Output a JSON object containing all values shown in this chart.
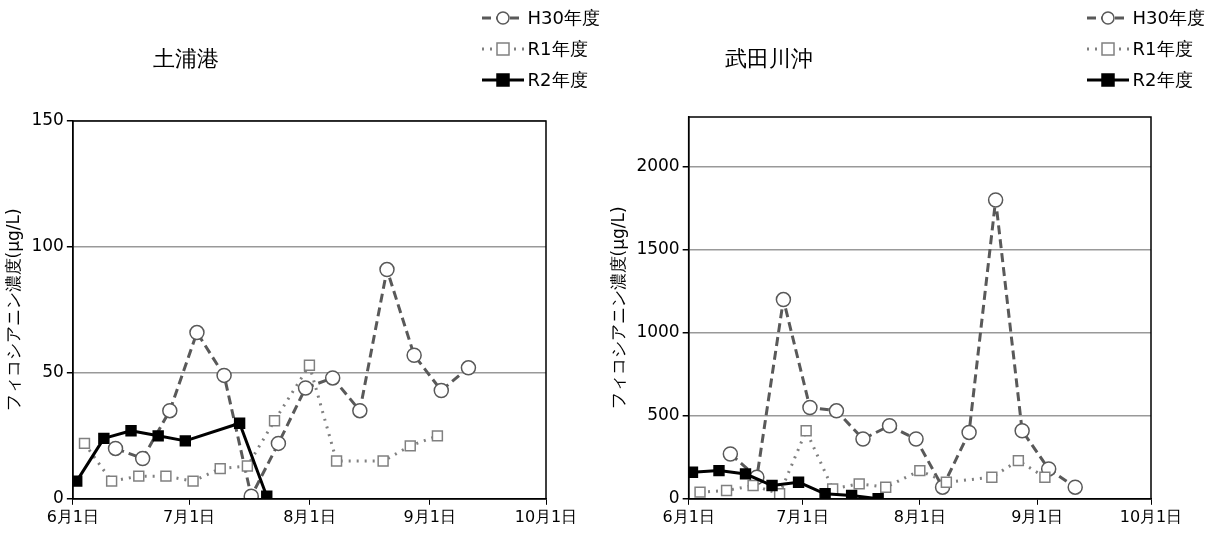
{
  "chart_data": [
    {
      "type": "line",
      "title": "土浦港",
      "ylabel": "フィコシアニン濃度(μg/L)",
      "legend": "top right",
      "grid": "y",
      "xlim": [
        "--06-01",
        "--10-01"
      ],
      "xticks": [
        {
          "value": "--06-01",
          "label": "6月1日"
        },
        {
          "value": "--07-01",
          "label": "7月1日"
        },
        {
          "value": "--08-01",
          "label": "8月1日"
        },
        {
          "value": "--09-01",
          "label": "9月1日"
        },
        {
          "value": "--10-01",
          "label": "10月1日"
        }
      ],
      "ylim": [
        0,
        150
      ],
      "yticks": [
        0,
        50,
        100,
        150
      ],
      "series": [
        {
          "name": "H30年度",
          "color": "#595959",
          "marker": "circle",
          "line_style": "dashed",
          "x": [
            "--06-12",
            "--06-19",
            "--06-26",
            "--07-03",
            "--07-10",
            "--07-17",
            "--07-24",
            "--07-31",
            "--08-07",
            "--08-14",
            "--08-21",
            "--08-28",
            "--09-04",
            "--09-11"
          ],
          "values": [
            20,
            16,
            35,
            66,
            49,
            1,
            22,
            44,
            48,
            35,
            91,
            57,
            43,
            52
          ]
        },
        {
          "name": "R1年度",
          "color": "#808080",
          "marker": "square",
          "line_style": "dotted",
          "x": [
            "--06-04",
            "--06-11",
            "--06-18",
            "--06-25",
            "--07-02",
            "--07-09",
            "--07-16",
            "--07-23",
            "--08-01",
            "--08-08",
            "--08-20",
            "--08-27",
            "--09-03"
          ],
          "values": [
            22,
            7,
            9,
            9,
            7,
            12,
            13,
            31,
            53,
            15,
            15,
            21,
            25
          ]
        },
        {
          "name": "R2年度",
          "color": "#000000",
          "marker": "square",
          "line_style": "solid",
          "x": [
            "--06-02",
            "--06-09",
            "--06-16",
            "--06-23",
            "--06-30",
            "--07-14",
            "--07-21"
          ],
          "values": [
            7,
            24,
            27,
            25,
            23,
            30,
            1
          ]
        }
      ]
    },
    {
      "type": "line",
      "title": "武田川沖",
      "ylabel": "フィコシアニン濃度(μg/L)",
      "legend": "top right",
      "grid": "y",
      "xlim": [
        "--06-01",
        "--10-01"
      ],
      "xticks": [
        {
          "value": "--06-01",
          "label": "6月1日"
        },
        {
          "value": "--07-01",
          "label": "7月1日"
        },
        {
          "value": "--08-01",
          "label": "8月1日"
        },
        {
          "value": "--09-01",
          "label": "9月1日"
        },
        {
          "value": "--10-01",
          "label": "10月1日"
        }
      ],
      "ylim": [
        0,
        2300
      ],
      "yticks": [
        0,
        500,
        1000,
        1500,
        2000
      ],
      "series": [
        {
          "name": "H30年度",
          "color": "#595959",
          "marker": "circle",
          "line_style": "dashed",
          "x": [
            "--06-12",
            "--06-19",
            "--06-26",
            "--07-03",
            "--07-10",
            "--07-17",
            "--07-24",
            "--07-31",
            "--08-07",
            "--08-14",
            "--08-21",
            "--08-28",
            "--09-04",
            "--09-11"
          ],
          "values": [
            270,
            130,
            1200,
            550,
            530,
            360,
            440,
            360,
            70,
            400,
            1800,
            410,
            180,
            70
          ]
        },
        {
          "name": "R1年度",
          "color": "#808080",
          "marker": "square",
          "line_style": "dotted",
          "x": [
            "--06-04",
            "--06-11",
            "--06-18",
            "--06-25",
            "--07-02",
            "--07-09",
            "--07-16",
            "--07-23",
            "--08-01",
            "--08-08",
            "--08-20",
            "--08-27",
            "--09-03"
          ],
          "values": [
            40,
            50,
            80,
            30,
            410,
            60,
            90,
            70,
            170,
            100,
            130,
            230,
            130
          ]
        },
        {
          "name": "R2年度",
          "color": "#000000",
          "marker": "square",
          "line_style": "solid",
          "x": [
            "--06-02",
            "--06-09",
            "--06-16",
            "--06-23",
            "--06-30",
            "--07-07",
            "--07-14",
            "--07-21"
          ],
          "values": [
            160,
            170,
            150,
            80,
            100,
            30,
            20,
            0
          ]
        }
      ]
    }
  ]
}
